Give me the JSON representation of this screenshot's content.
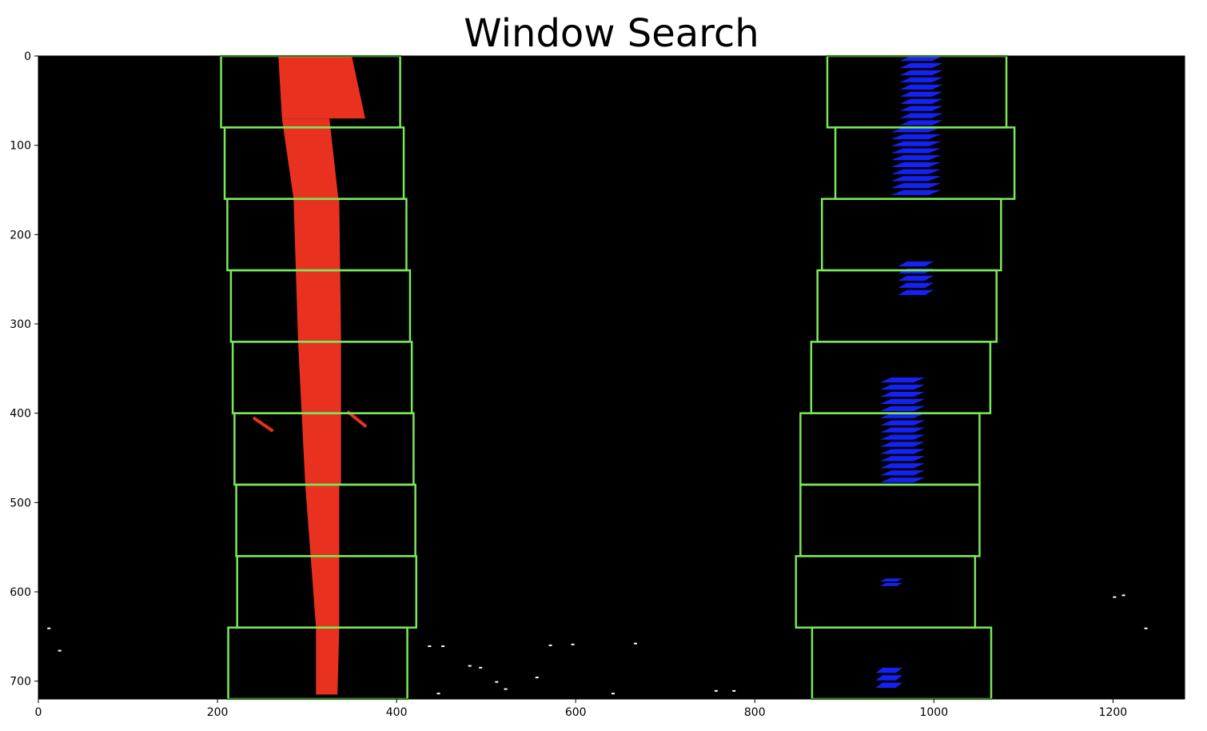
{
  "chart_data": {
    "type": "image",
    "title": "Window Search",
    "xlim": [
      0,
      1280
    ],
    "ylim": [
      720,
      0
    ],
    "x_ticks": [
      0,
      200,
      400,
      600,
      800,
      1000,
      1200
    ],
    "y_ticks": [
      0,
      100,
      200,
      300,
      400,
      500,
      600,
      700
    ],
    "x_tick_labels": [
      "0",
      "200",
      "400",
      "600",
      "800",
      "1000",
      "1200"
    ],
    "y_tick_labels": [
      "0",
      "100",
      "200",
      "300",
      "400",
      "500",
      "600",
      "700"
    ],
    "background_color": "#000000",
    "window_color": "#7ae85a",
    "left_lane_color": "#e8321f",
    "right_lane_color": "#1622f5",
    "noise_color": "#ffffff",
    "windows": [
      {
        "lane": "left",
        "x0": 204,
        "x1": 404,
        "y0": 0,
        "y1": 80
      },
      {
        "lane": "left",
        "x0": 208,
        "x1": 408,
        "y0": 80,
        "y1": 160
      },
      {
        "lane": "left",
        "x0": 211,
        "x1": 411,
        "y0": 160,
        "y1": 240
      },
      {
        "lane": "left",
        "x0": 215,
        "x1": 415,
        "y0": 240,
        "y1": 320
      },
      {
        "lane": "left",
        "x0": 217,
        "x1": 417,
        "y0": 320,
        "y1": 400
      },
      {
        "lane": "left",
        "x0": 219,
        "x1": 419,
        "y0": 400,
        "y1": 480
      },
      {
        "lane": "left",
        "x0": 221,
        "x1": 421,
        "y0": 480,
        "y1": 560
      },
      {
        "lane": "left",
        "x0": 222,
        "x1": 422,
        "y0": 560,
        "y1": 640
      },
      {
        "lane": "left",
        "x0": 212,
        "x1": 412,
        "y0": 640,
        "y1": 720
      },
      {
        "lane": "right",
        "x0": 881,
        "x1": 1081,
        "y0": 0,
        "y1": 80
      },
      {
        "lane": "right",
        "x0": 890,
        "x1": 1090,
        "y0": 80,
        "y1": 160
      },
      {
        "lane": "right",
        "x0": 875,
        "x1": 1075,
        "y0": 160,
        "y1": 240
      },
      {
        "lane": "right",
        "x0": 870,
        "x1": 1070,
        "y0": 240,
        "y1": 320
      },
      {
        "lane": "right",
        "x0": 863,
        "x1": 1063,
        "y0": 320,
        "y1": 400
      },
      {
        "lane": "right",
        "x0": 851,
        "x1": 1051,
        "y0": 400,
        "y1": 480
      },
      {
        "lane": "right",
        "x0": 851,
        "x1": 1051,
        "y0": 480,
        "y1": 560
      },
      {
        "lane": "right",
        "x0": 846,
        "x1": 1046,
        "y0": 560,
        "y1": 640
      },
      {
        "lane": "right",
        "x0": 864,
        "x1": 1064,
        "y0": 640,
        "y1": 720
      }
    ],
    "left_lane_segments": [
      {
        "y0": 0,
        "y1": 70,
        "xl0": 268,
        "xr0": 350,
        "xl1": 272,
        "xr1": 365
      },
      {
        "y0": 70,
        "y1": 160,
        "xl0": 272,
        "xr0": 325,
        "xl1": 285,
        "xr1": 335
      },
      {
        "y0": 160,
        "y1": 320,
        "xl0": 285,
        "xr0": 336,
        "xl1": 290,
        "xr1": 338
      },
      {
        "y0": 320,
        "y1": 480,
        "xl0": 290,
        "xr0": 338,
        "xl1": 298,
        "xr1": 338
      },
      {
        "y0": 480,
        "y1": 640,
        "xl0": 298,
        "xr0": 336,
        "xl1": 310,
        "xr1": 336
      },
      {
        "y0": 640,
        "y1": 715,
        "xl0": 310,
        "xr0": 336,
        "xl1": 310,
        "xr1": 334
      }
    ],
    "left_lane_streaks": [
      {
        "x0": 240,
        "y0": 405,
        "x1": 262,
        "y1": 420
      },
      {
        "x0": 345,
        "y0": 398,
        "x1": 366,
        "y1": 415
      }
    ],
    "right_lane_blobs": [
      {
        "x0": 962,
        "y0": 0,
        "x1": 1010,
        "y1": 80
      },
      {
        "x0": 952,
        "y0": 80,
        "x1": 1008,
        "y1": 158
      },
      {
        "x0": 960,
        "y0": 230,
        "x1": 1000,
        "y1": 270
      },
      {
        "x0": 940,
        "y0": 360,
        "x1": 990,
        "y1": 480
      },
      {
        "x0": 940,
        "y0": 585,
        "x1": 965,
        "y1": 595
      },
      {
        "x0": 935,
        "y0": 685,
        "x1": 965,
        "y1": 710
      }
    ],
    "noise_points": [
      {
        "x": 10,
        "y": 640
      },
      {
        "x": 22,
        "y": 665
      },
      {
        "x": 435,
        "y": 660
      },
      {
        "x": 450,
        "y": 660
      },
      {
        "x": 480,
        "y": 682
      },
      {
        "x": 492,
        "y": 684
      },
      {
        "x": 510,
        "y": 700
      },
      {
        "x": 520,
        "y": 708
      },
      {
        "x": 445,
        "y": 713
      },
      {
        "x": 555,
        "y": 695
      },
      {
        "x": 570,
        "y": 659
      },
      {
        "x": 595,
        "y": 658
      },
      {
        "x": 640,
        "y": 713
      },
      {
        "x": 665,
        "y": 657
      },
      {
        "x": 755,
        "y": 710
      },
      {
        "x": 775,
        "y": 710
      },
      {
        "x": 1200,
        "y": 605
      },
      {
        "x": 1210,
        "y": 603
      },
      {
        "x": 1235,
        "y": 640
      }
    ]
  }
}
